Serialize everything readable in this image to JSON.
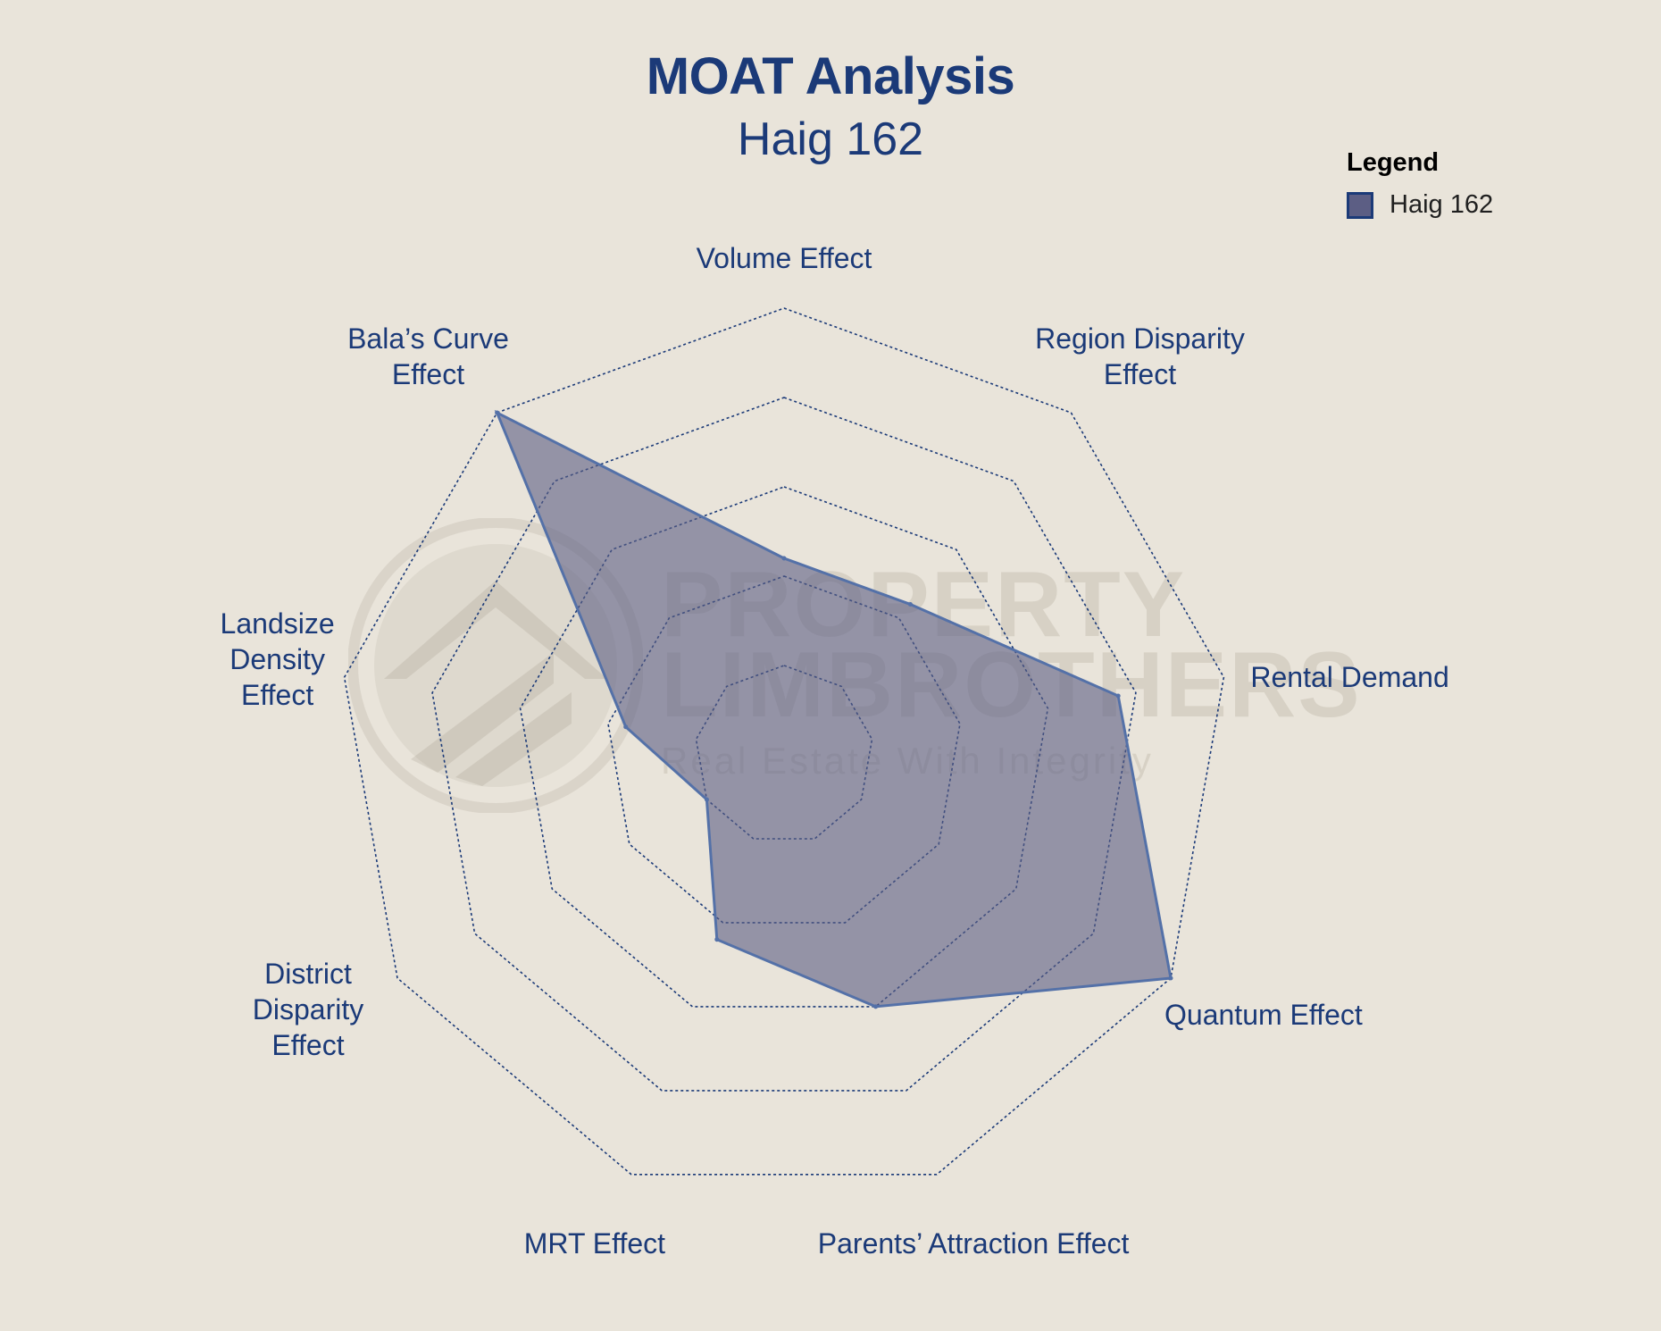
{
  "header": {
    "title": "MOAT Analysis",
    "subtitle": "Haig 162"
  },
  "legend": {
    "title": "Legend",
    "position": "top-right",
    "items": [
      {
        "label": "Haig 162",
        "color": "#5c5e84",
        "border_color": "#1b3a78"
      }
    ]
  },
  "watermark": {
    "line1": "PROPERTY",
    "line2": "LIMBROTHERS",
    "line3": "Real Estate With Integrity"
  },
  "colors": {
    "background": "#e9e4da",
    "text": "#1b3a78",
    "fill": "#5c5e84",
    "stroke": "#5471a8",
    "grid": "#1b3a78"
  },
  "chart_data": {
    "type": "radar",
    "title": "MOAT Analysis",
    "subtitle": "Haig 162",
    "grid": true,
    "grid_levels": 5,
    "rlim": [
      0,
      5
    ],
    "categories": [
      "Volume Effect",
      "Region Disparity Effect",
      "Rental Demand",
      "Quantum Effect",
      "Parents’ Attraction Effect",
      "MRT Effect",
      "District Disparity Effect",
      "Landsize Density Effect",
      "Bala’s Curve Effect"
    ],
    "category_lines": [
      [
        "Volume Effect"
      ],
      [
        "Region Disparity",
        "Effect"
      ],
      [
        "Rental Demand"
      ],
      [
        "Quantum Effect"
      ],
      [
        "Parents’ Attraction Effect"
      ],
      [
        "MRT Effect"
      ],
      [
        "District",
        "Disparity",
        "Effect"
      ],
      [
        "Landsize",
        "Density",
        "Effect"
      ],
      [
        "Bala’s Curve",
        "Effect"
      ]
    ],
    "series": [
      {
        "name": "Haig 162",
        "values": [
          2.2,
          2.2,
          3.8,
          5,
          3.0,
          2.2,
          1.0,
          1.8,
          5
        ]
      }
    ]
  }
}
